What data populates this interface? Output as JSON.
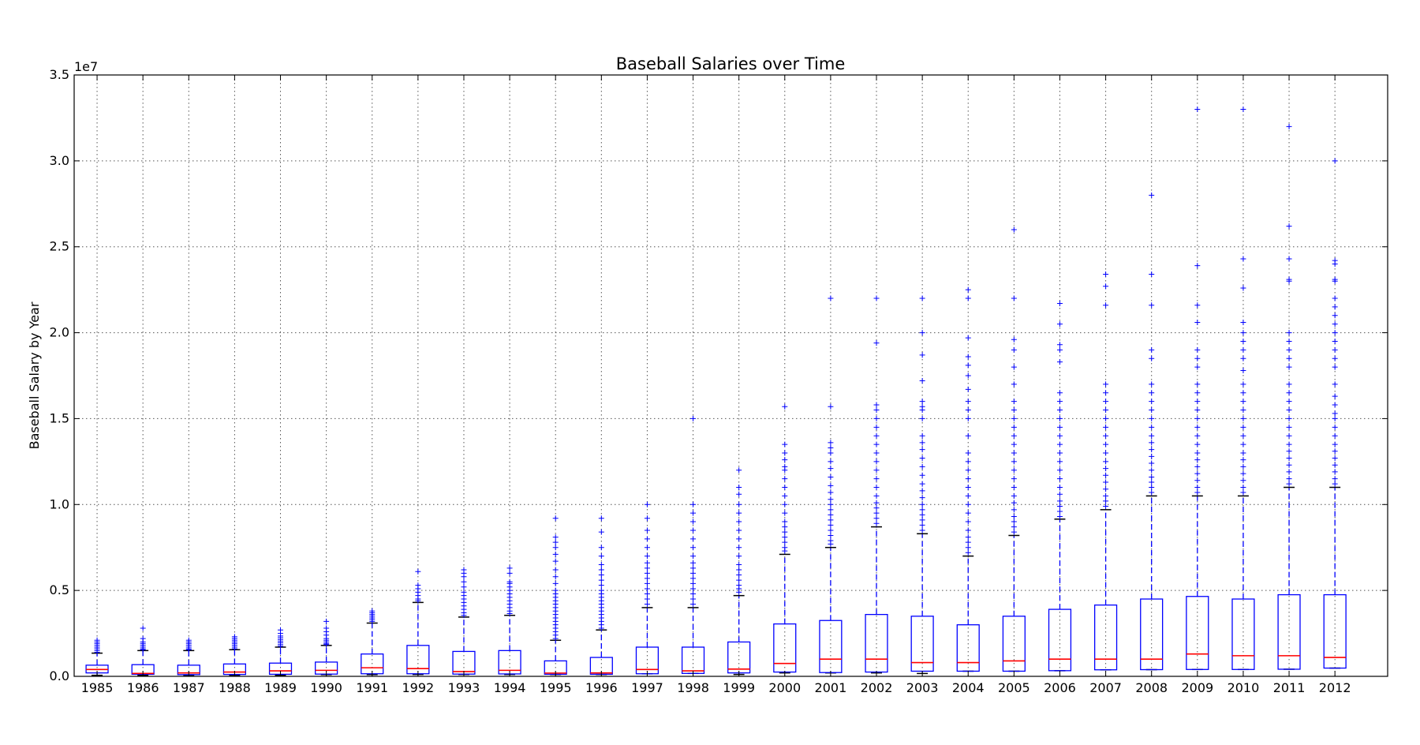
{
  "chart_data": {
    "type": "box",
    "title": "Baseball Salaries over Time",
    "xlabel": "",
    "ylabel": "Baseball Salary by Year",
    "y_offset_label": "1e7",
    "ylim": [
      0,
      35000000
    ],
    "yticks": [
      0,
      5000000,
      10000000,
      15000000,
      20000000,
      25000000,
      30000000,
      35000000
    ],
    "ytick_labels": [
      "0.0",
      "0.5",
      "1.0",
      "1.5",
      "2.0",
      "2.5",
      "3.0",
      "3.5"
    ],
    "grid": true,
    "colors": {
      "box": "#0000ff",
      "median": "#ff0000",
      "whisker_cap": "#000000",
      "flier": "#0000ff",
      "grid": "#555555"
    },
    "categories": [
      "1985",
      "1986",
      "1987",
      "1988",
      "1989",
      "1990",
      "1991",
      "1992",
      "1993",
      "1994",
      "1995",
      "1996",
      "1997",
      "1998",
      "1999",
      "2000",
      "2001",
      "2002",
      "2003",
      "2004",
      "2005",
      "2006",
      "2007",
      "2008",
      "2009",
      "2010",
      "2011",
      "2012"
    ],
    "boxes": [
      {
        "year": "1985",
        "q1": 200000,
        "median": 400000,
        "q3": 650000,
        "whisker_low": 60000,
        "whisker_high": 1350000,
        "outliers": [
          1400000,
          1500000,
          1600000,
          1700000,
          1800000,
          1900000,
          2000000,
          2100000
        ]
      },
      {
        "year": "1986",
        "q1": 120000,
        "median": 170000,
        "q3": 680000,
        "whisker_low": 60000,
        "whisker_high": 1500000,
        "outliers": [
          1550000,
          1600000,
          1700000,
          1800000,
          1900000,
          2000000,
          2200000,
          2800000
        ]
      },
      {
        "year": "1987",
        "q1": 100000,
        "median": 200000,
        "q3": 650000,
        "whisker_low": 62500,
        "whisker_high": 1500000,
        "outliers": [
          1550000,
          1600000,
          1700000,
          1800000,
          1900000,
          2000000,
          2100000
        ]
      },
      {
        "year": "1988",
        "q1": 110000,
        "median": 250000,
        "q3": 720000,
        "whisker_low": 62500,
        "whisker_high": 1550000,
        "outliers": [
          1600000,
          1700000,
          1800000,
          1900000,
          2000000,
          2100000,
          2200000,
          2300000
        ]
      },
      {
        "year": "1989",
        "q1": 120000,
        "median": 320000,
        "q3": 770000,
        "whisker_low": 62500,
        "whisker_high": 1700000,
        "outliers": [
          1750000,
          1850000,
          1950000,
          2050000,
          2150000,
          2250000,
          2350000,
          2500000,
          2700000
        ]
      },
      {
        "year": "1990",
        "q1": 130000,
        "median": 350000,
        "q3": 830000,
        "whisker_low": 100000,
        "whisker_high": 1800000,
        "outliers": [
          1850000,
          1900000,
          2000000,
          2100000,
          2200000,
          2400000,
          2600000,
          2800000,
          3200000
        ]
      },
      {
        "year": "1991",
        "q1": 150000,
        "median": 500000,
        "q3": 1300000,
        "whisker_low": 100000,
        "whisker_high": 3100000,
        "outliers": [
          3200000,
          3300000,
          3400000,
          3500000,
          3600000,
          3700000,
          3800000
        ]
      },
      {
        "year": "1992",
        "q1": 150000,
        "median": 450000,
        "q3": 1800000,
        "whisker_low": 109000,
        "whisker_high": 4300000,
        "outliers": [
          4400000,
          4500000,
          4700000,
          4900000,
          5100000,
          5300000,
          6100000
        ]
      },
      {
        "year": "1993",
        "q1": 130000,
        "median": 280000,
        "q3": 1450000,
        "whisker_low": 109000,
        "whisker_high": 3450000,
        "outliers": [
          3550000,
          3700000,
          3900000,
          4100000,
          4300000,
          4500000,
          4700000,
          4900000,
          5200000,
          5500000,
          5800000,
          6000000,
          6200000
        ]
      },
      {
        "year": "1994",
        "q1": 140000,
        "median": 350000,
        "q3": 1500000,
        "whisker_low": 109000,
        "whisker_high": 3550000,
        "outliers": [
          3650000,
          3800000,
          4000000,
          4200000,
          4400000,
          4600000,
          4800000,
          5000000,
          5200000,
          5400000,
          5500000,
          6000000,
          6300000
        ]
      },
      {
        "year": "1995",
        "q1": 120000,
        "median": 190000,
        "q3": 900000,
        "whisker_low": 109000,
        "whisker_high": 2100000,
        "outliers": [
          2200000,
          2400000,
          2600000,
          2800000,
          3000000,
          3200000,
          3400000,
          3600000,
          3800000,
          4000000,
          4200000,
          4400000,
          4600000,
          4800000,
          5000000,
          5400000,
          5800000,
          6200000,
          6700000,
          7100000,
          7500000,
          7800000,
          8100000,
          9200000
        ]
      },
      {
        "year": "1996",
        "q1": 120000,
        "median": 200000,
        "q3": 1100000,
        "whisker_low": 109000,
        "whisker_high": 2700000,
        "outliers": [
          2800000,
          3000000,
          3200000,
          3400000,
          3600000,
          3800000,
          4000000,
          4200000,
          4400000,
          4600000,
          4800000,
          5000000,
          5300000,
          5600000,
          5900000,
          6200000,
          6500000,
          7000000,
          7500000,
          8400000,
          9200000
        ]
      },
      {
        "year": "1997",
        "q1": 150000,
        "median": 400000,
        "q3": 1700000,
        "whisker_low": 150000,
        "whisker_high": 4000000,
        "outliers": [
          4200000,
          4500000,
          4800000,
          5100000,
          5400000,
          5700000,
          6000000,
          6300000,
          6600000,
          7000000,
          7500000,
          8000000,
          8500000,
          9200000,
          10000000
        ]
      },
      {
        "year": "1998",
        "q1": 170000,
        "median": 320000,
        "q3": 1700000,
        "whisker_low": 170000,
        "whisker_high": 4000000,
        "outliers": [
          4200000,
          4500000,
          4800000,
          5100000,
          5400000,
          5700000,
          6000000,
          6300000,
          6600000,
          7000000,
          7500000,
          8000000,
          8500000,
          9000000,
          9500000,
          10000000,
          15000000
        ]
      },
      {
        "year": "1999",
        "q1": 200000,
        "median": 420000,
        "q3": 2000000,
        "whisker_low": 109000,
        "whisker_high": 4700000,
        "outliers": [
          4900000,
          5100000,
          5300000,
          5600000,
          5900000,
          6200000,
          6500000,
          7000000,
          7500000,
          8000000,
          8500000,
          9000000,
          9500000,
          10000000,
          10600000,
          11000000,
          12000000
        ]
      },
      {
        "year": "2000",
        "q1": 250000,
        "median": 750000,
        "q3": 3050000,
        "whisker_low": 200000,
        "whisker_high": 7100000,
        "outliers": [
          7300000,
          7500000,
          7800000,
          8100000,
          8400000,
          8700000,
          9000000,
          9500000,
          10000000,
          10500000,
          11000000,
          11500000,
          12000000,
          12200000,
          12600000,
          13000000,
          13500000,
          15700000
        ]
      },
      {
        "year": "2001",
        "q1": 220000,
        "median": 1000000,
        "q3": 3250000,
        "whisker_low": 200000,
        "whisker_high": 7500000,
        "outliers": [
          7700000,
          7900000,
          8200000,
          8500000,
          8800000,
          9100000,
          9400000,
          9700000,
          10000000,
          10300000,
          10700000,
          11100000,
          11600000,
          12100000,
          12500000,
          13000000,
          13300000,
          13600000,
          15700000,
          22000000
        ]
      },
      {
        "year": "2002",
        "q1": 250000,
        "median": 1000000,
        "q3": 3600000,
        "whisker_low": 200000,
        "whisker_high": 8700000,
        "outliers": [
          8900000,
          9200000,
          9500000,
          9800000,
          10100000,
          10500000,
          11000000,
          11500000,
          12000000,
          12500000,
          13000000,
          13500000,
          14000000,
          14500000,
          15000000,
          15500000,
          15800000,
          19400000,
          22000000
        ]
      },
      {
        "year": "2003",
        "q1": 300000,
        "median": 800000,
        "q3": 3500000,
        "whisker_low": 165000,
        "whisker_high": 8300000,
        "outliers": [
          8500000,
          8800000,
          9100000,
          9400000,
          9700000,
          10000000,
          10400000,
          10800000,
          11200000,
          11700000,
          12200000,
          12700000,
          13200000,
          13600000,
          14000000,
          15000000,
          15500000,
          15700000,
          16000000,
          17200000,
          18700000,
          20000000,
          22000000
        ]
      },
      {
        "year": "2004",
        "q1": 300000,
        "median": 800000,
        "q3": 3000000,
        "whisker_low": 300000,
        "whisker_high": 7000000,
        "outliers": [
          7200000,
          7500000,
          7800000,
          8100000,
          8500000,
          9000000,
          9500000,
          10000000,
          10500000,
          11000000,
          11500000,
          12000000,
          12500000,
          13000000,
          14000000,
          15000000,
          15500000,
          16000000,
          16700000,
          17500000,
          18100000,
          18600000,
          19700000,
          22000000,
          22500000
        ]
      },
      {
        "year": "2005",
        "q1": 300000,
        "median": 900000,
        "q3": 3500000,
        "whisker_low": 300000,
        "whisker_high": 8200000,
        "outliers": [
          8400000,
          8700000,
          9000000,
          9300000,
          9700000,
          10100000,
          10500000,
          11000000,
          11500000,
          12000000,
          12500000,
          13000000,
          13500000,
          14000000,
          14500000,
          15000000,
          15500000,
          16000000,
          17000000,
          18000000,
          19000000,
          19600000,
          22000000,
          26000000
        ]
      },
      {
        "year": "2006",
        "q1": 330000,
        "median": 1000000,
        "q3": 3900000,
        "whisker_low": 327000,
        "whisker_high": 9150000,
        "outliers": [
          9300000,
          9600000,
          9900000,
          10200000,
          10600000,
          11000000,
          11500000,
          12000000,
          12500000,
          13000000,
          13500000,
          14000000,
          14500000,
          15000000,
          15500000,
          16000000,
          16500000,
          18300000,
          19000000,
          19300000,
          20500000,
          21700000
        ]
      },
      {
        "year": "2007",
        "q1": 380000,
        "median": 1000000,
        "q3": 4150000,
        "whisker_low": 380000,
        "whisker_high": 9700000,
        "outliers": [
          9900000,
          10200000,
          10500000,
          10900000,
          11300000,
          11700000,
          12100000,
          12500000,
          13000000,
          13500000,
          14000000,
          14500000,
          15000000,
          15500000,
          16000000,
          16500000,
          17000000,
          21600000,
          22700000,
          23400000
        ]
      },
      {
        "year": "2008",
        "q1": 390000,
        "median": 1000000,
        "q3": 4500000,
        "whisker_low": 390000,
        "whisker_high": 10500000,
        "outliers": [
          10700000,
          11000000,
          11300000,
          11600000,
          12000000,
          12400000,
          12800000,
          13200000,
          13600000,
          14000000,
          14500000,
          15000000,
          15500000,
          16000000,
          16500000,
          17000000,
          18500000,
          19000000,
          21600000,
          23400000,
          28000000
        ]
      },
      {
        "year": "2009",
        "q1": 400000,
        "median": 1300000,
        "q3": 4650000,
        "whisker_low": 400000,
        "whisker_high": 10500000,
        "outliers": [
          10700000,
          11000000,
          11400000,
          11800000,
          12200000,
          12600000,
          13000000,
          13500000,
          14000000,
          14500000,
          15000000,
          15500000,
          16000000,
          16500000,
          17000000,
          18000000,
          18500000,
          19000000,
          20600000,
          21600000,
          23900000,
          33000000
        ]
      },
      {
        "year": "2010",
        "q1": 400000,
        "median": 1200000,
        "q3": 4500000,
        "whisker_low": 400000,
        "whisker_high": 10500000,
        "outliers": [
          10700000,
          11000000,
          11400000,
          11800000,
          12200000,
          12600000,
          13000000,
          13500000,
          14000000,
          14500000,
          15000000,
          15500000,
          16000000,
          16500000,
          17000000,
          17800000,
          18500000,
          19000000,
          19500000,
          20000000,
          20600000,
          22600000,
          24300000,
          33000000
        ]
      },
      {
        "year": "2011",
        "q1": 414000,
        "median": 1200000,
        "q3": 4750000,
        "whisker_low": 414000,
        "whisker_high": 11000000,
        "outliers": [
          11200000,
          11500000,
          11900000,
          12300000,
          12700000,
          13100000,
          13500000,
          14000000,
          14500000,
          15000000,
          15500000,
          16000000,
          16500000,
          17000000,
          18000000,
          18500000,
          19000000,
          19500000,
          20000000,
          23000000,
          23100000,
          24300000,
          26200000,
          32000000
        ]
      },
      {
        "year": "2012",
        "q1": 480000,
        "median": 1100000,
        "q3": 4750000,
        "whisker_low": 480000,
        "whisker_high": 11000000,
        "outliers": [
          11200000,
          11500000,
          11900000,
          12300000,
          12700000,
          13100000,
          13500000,
          14000000,
          14500000,
          15000000,
          15300000,
          15800000,
          16300000,
          17000000,
          18000000,
          18500000,
          19000000,
          19500000,
          20000000,
          20500000,
          21000000,
          21500000,
          22000000,
          23000000,
          23100000,
          24000000,
          24200000,
          30000000
        ]
      }
    ]
  }
}
